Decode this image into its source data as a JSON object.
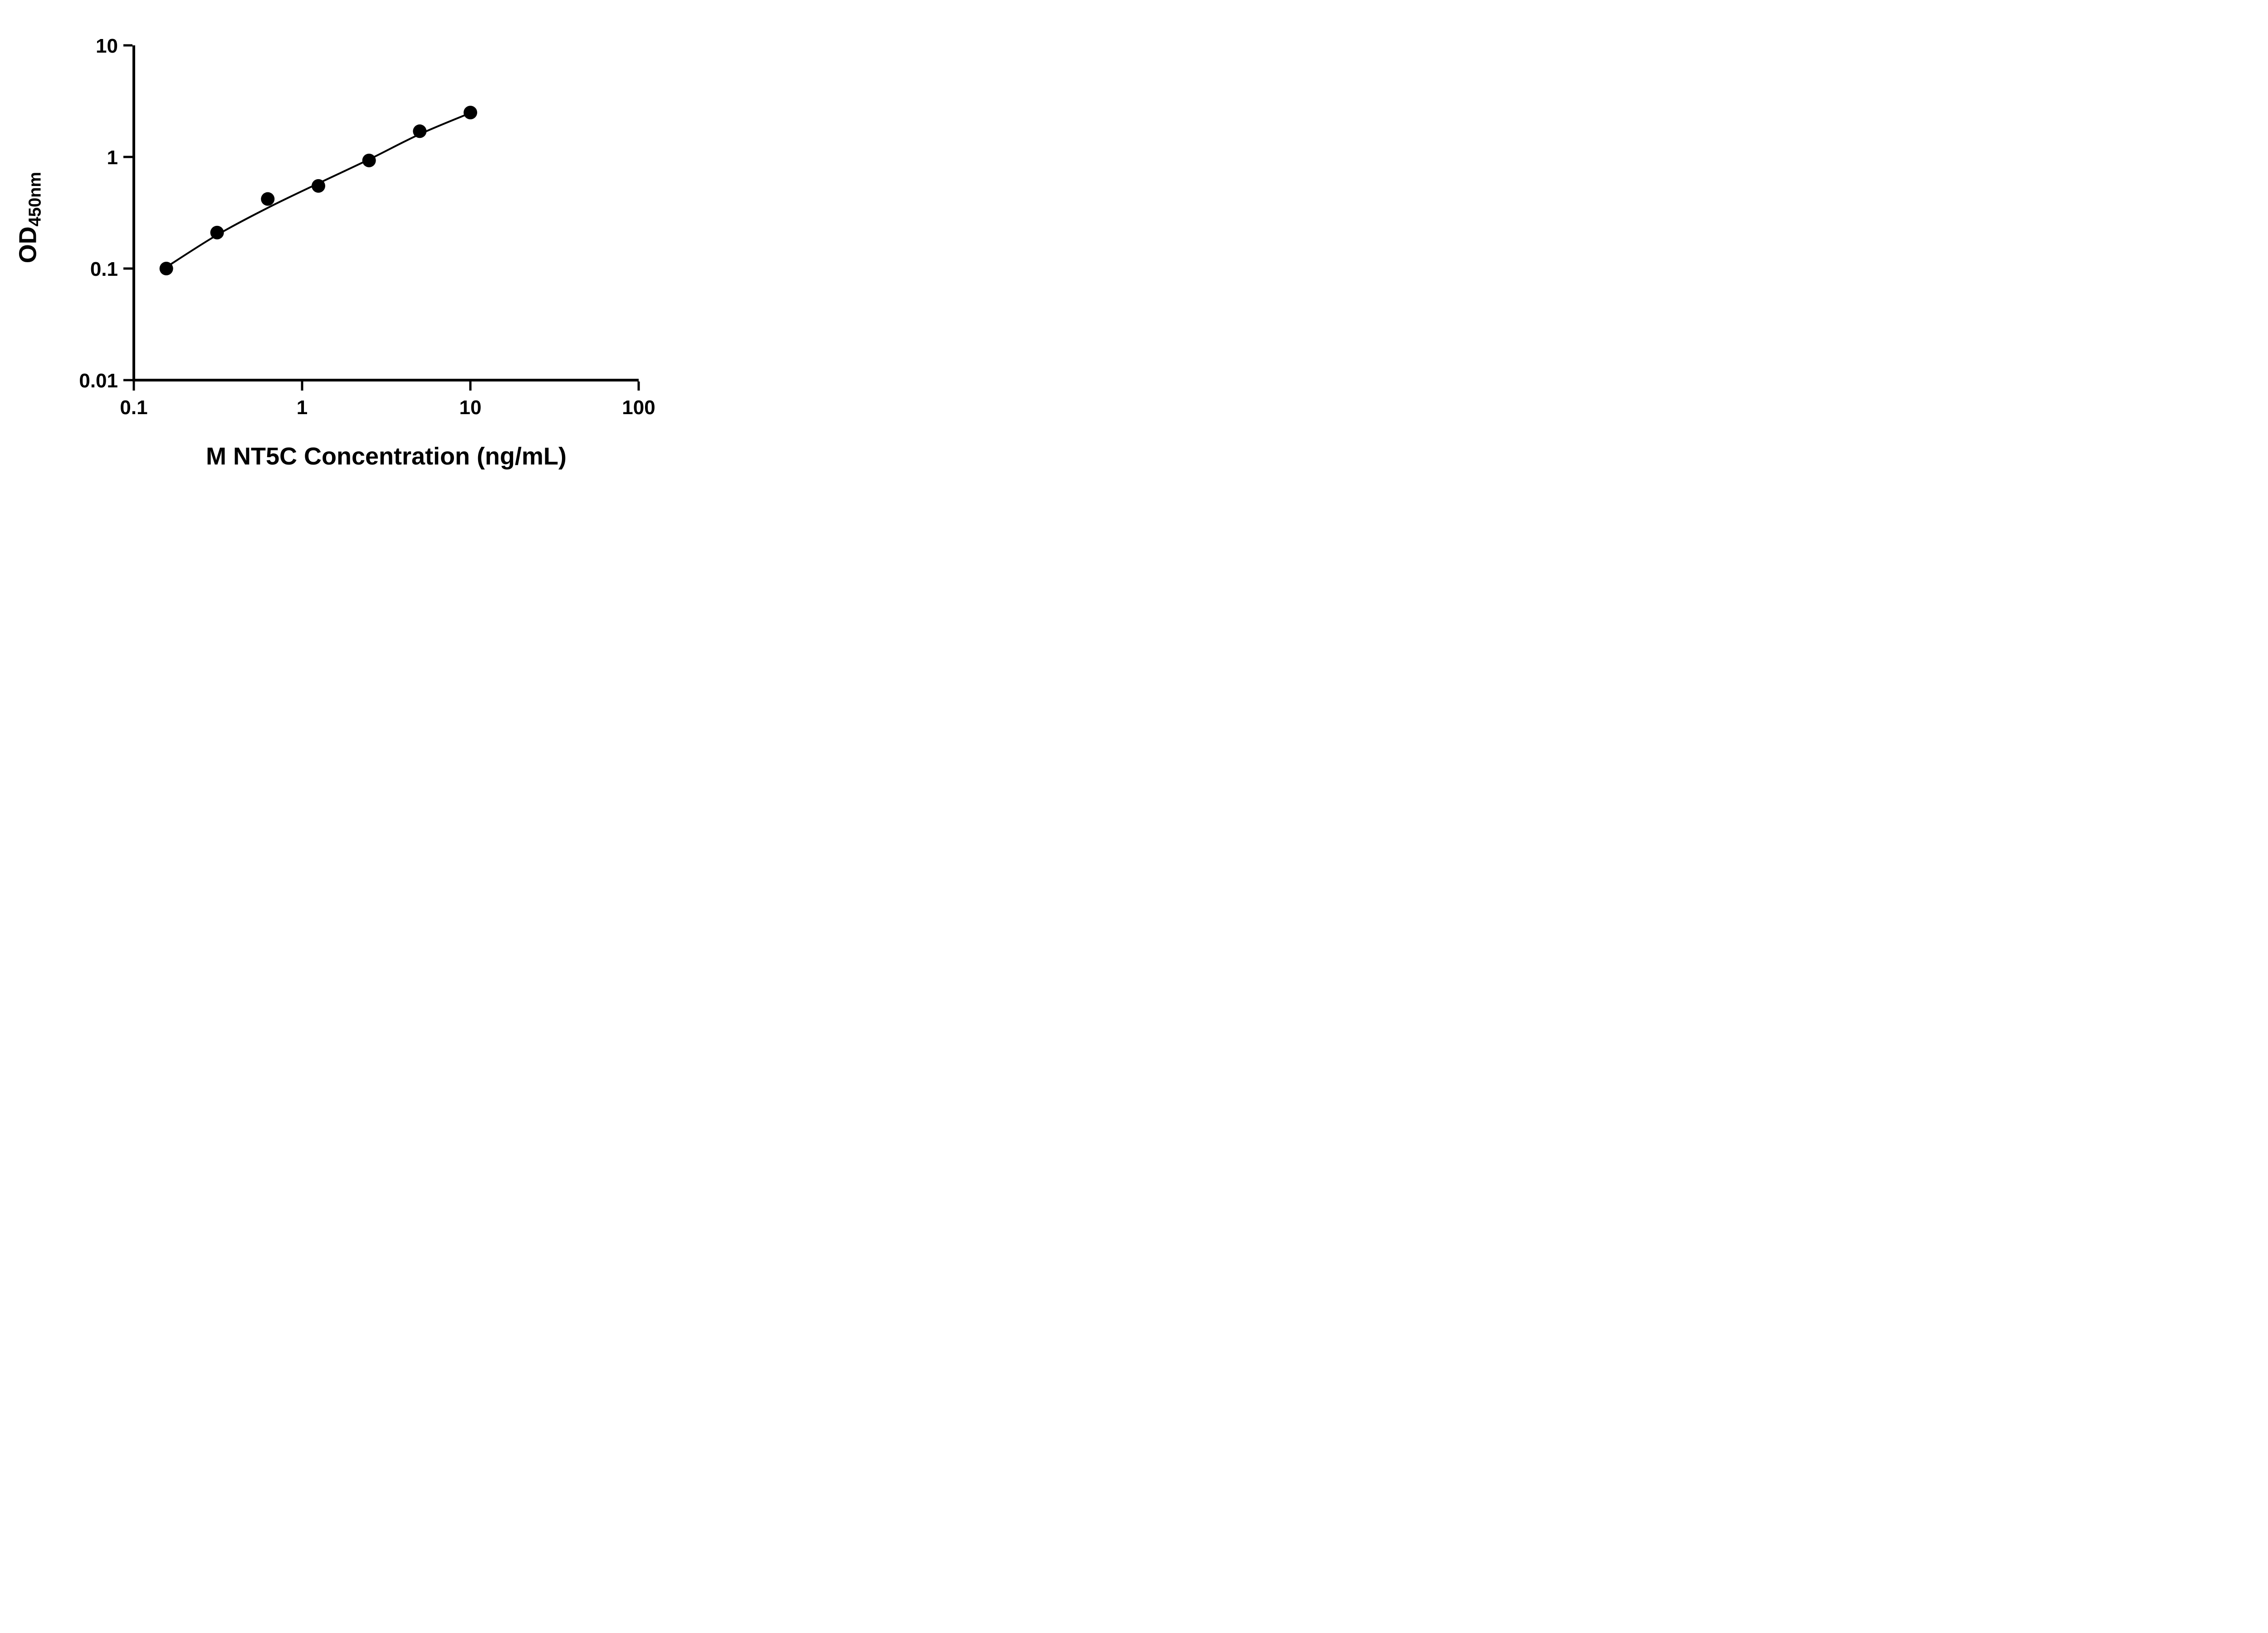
{
  "chart_data": {
    "type": "scatter",
    "title": "",
    "xlabel": "M NT5C Concentration (ng/mL)",
    "ylabel_main": "OD",
    "ylabel_sub": "450nm",
    "x_scale": "log",
    "y_scale": "log",
    "xlim": [
      0.1,
      100
    ],
    "ylim": [
      0.01,
      10
    ],
    "grid": false,
    "legend": "none",
    "x_ticks": [
      {
        "value": 0.1,
        "label": "0.1"
      },
      {
        "value": 1,
        "label": "1"
      },
      {
        "value": 10,
        "label": "10"
      },
      {
        "value": 100,
        "label": "100"
      }
    ],
    "y_ticks": [
      {
        "value": 0.01,
        "label": "0.01"
      },
      {
        "value": 0.1,
        "label": "0.1"
      },
      {
        "value": 1,
        "label": "1"
      },
      {
        "value": 10,
        "label": "10"
      }
    ],
    "points": [
      {
        "x": 0.156,
        "y": 0.1
      },
      {
        "x": 0.3125,
        "y": 0.21
      },
      {
        "x": 0.625,
        "y": 0.42
      },
      {
        "x": 1.25,
        "y": 0.55
      },
      {
        "x": 2.5,
        "y": 0.93
      },
      {
        "x": 5,
        "y": 1.7
      },
      {
        "x": 10,
        "y": 2.5
      }
    ],
    "fit_line": [
      {
        "x": 0.156,
        "y": 0.103
      },
      {
        "x": 0.3125,
        "y": 0.2
      },
      {
        "x": 0.625,
        "y": 0.35
      },
      {
        "x": 1.25,
        "y": 0.58
      },
      {
        "x": 2.5,
        "y": 0.95
      },
      {
        "x": 5,
        "y": 1.6
      },
      {
        "x": 10,
        "y": 2.48
      }
    ],
    "marker_color": "#000000",
    "line_color": "#000000",
    "axis_color": "#000000"
  }
}
